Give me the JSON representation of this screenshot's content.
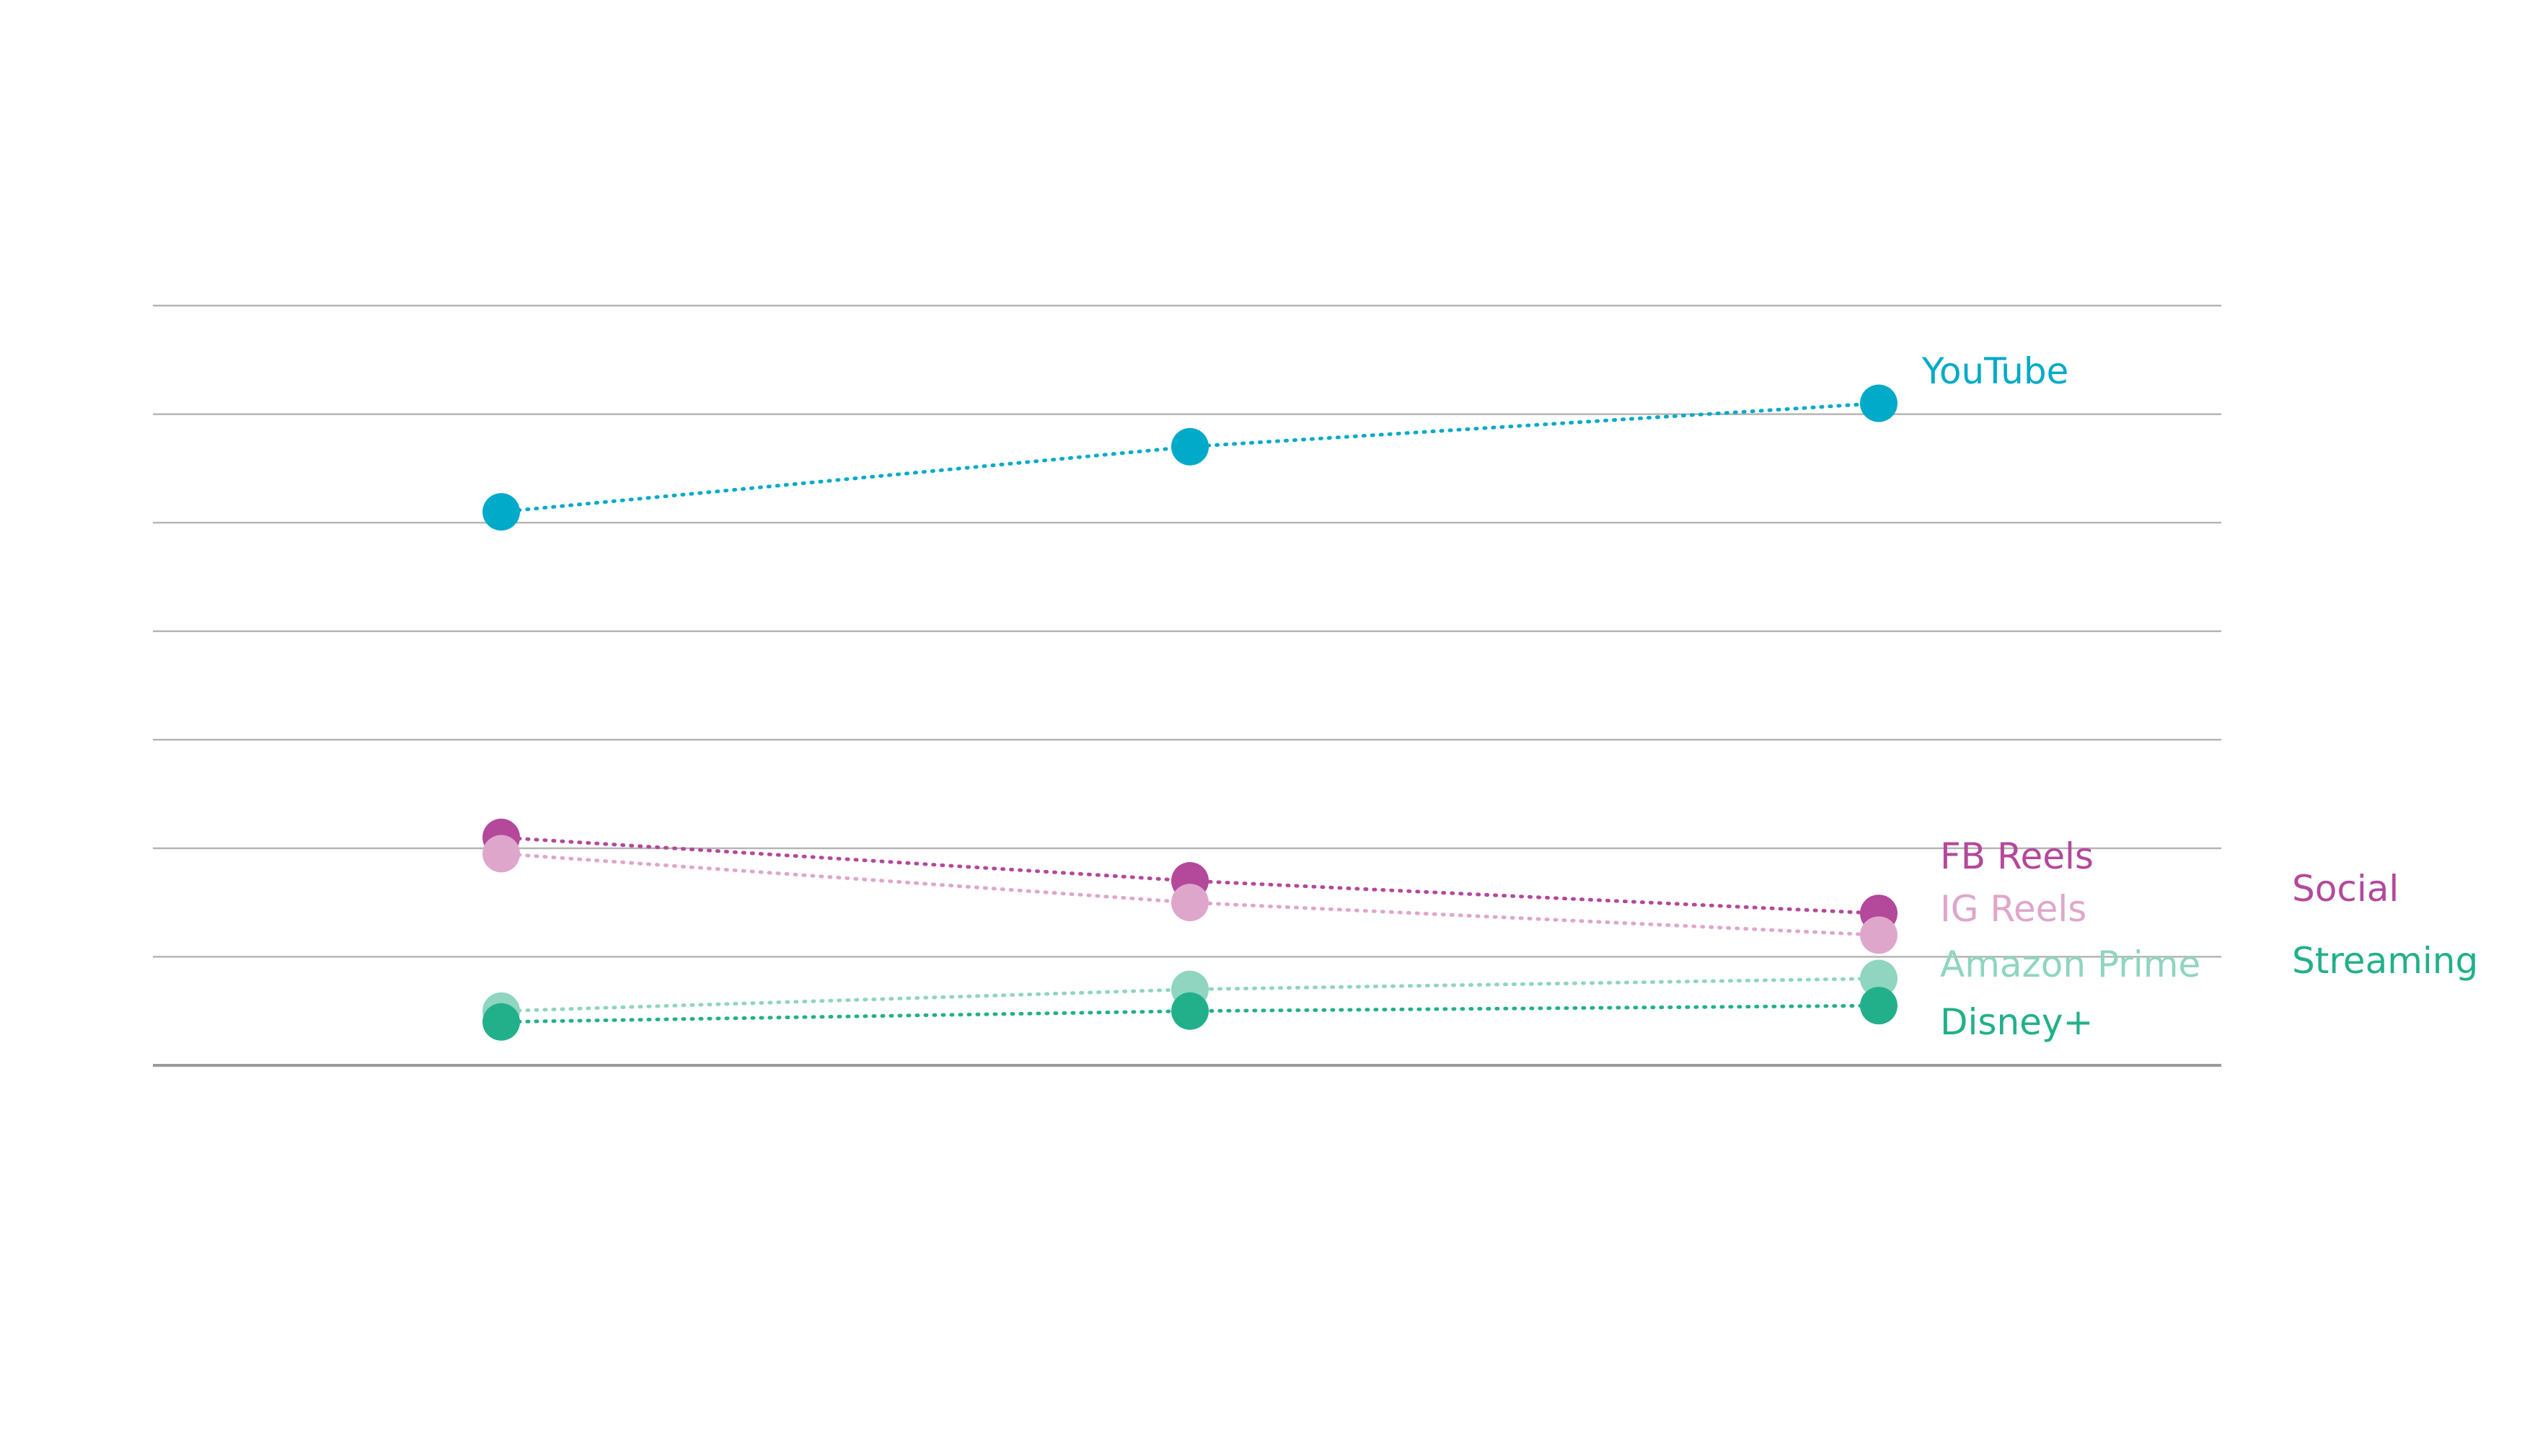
{
  "chart_data": {
    "type": "line",
    "title": "",
    "xlabel": "",
    "ylabel": "",
    "x": [
      1,
      2,
      3
    ],
    "ylim": [
      0,
      7
    ],
    "grid": true,
    "line_style": "dotted",
    "series": [
      {
        "name": "YouTube",
        "values": [
          5.1,
          5.7,
          6.1
        ],
        "color": "#00aac8",
        "group": ""
      },
      {
        "name": "FB Reels",
        "values": [
          2.1,
          1.7,
          1.4
        ],
        "color": "#b4489b",
        "group": "Social"
      },
      {
        "name": "IG Reels",
        "values": [
          1.95,
          1.5,
          1.2
        ],
        "color": "#dfa6cc",
        "group": "Social"
      },
      {
        "name": "Amazon Prime",
        "values": [
          0.5,
          0.7,
          0.8
        ],
        "color": "#8fd5c0",
        "group": "Streaming"
      },
      {
        "name": "Disney+",
        "values": [
          0.4,
          0.5,
          0.55
        ],
        "color": "#22b08a",
        "group": "Streaming"
      }
    ],
    "groups": [
      {
        "name": "Social",
        "color": "#b4489b"
      },
      {
        "name": "Streaming",
        "color": "#22b08a"
      }
    ]
  }
}
